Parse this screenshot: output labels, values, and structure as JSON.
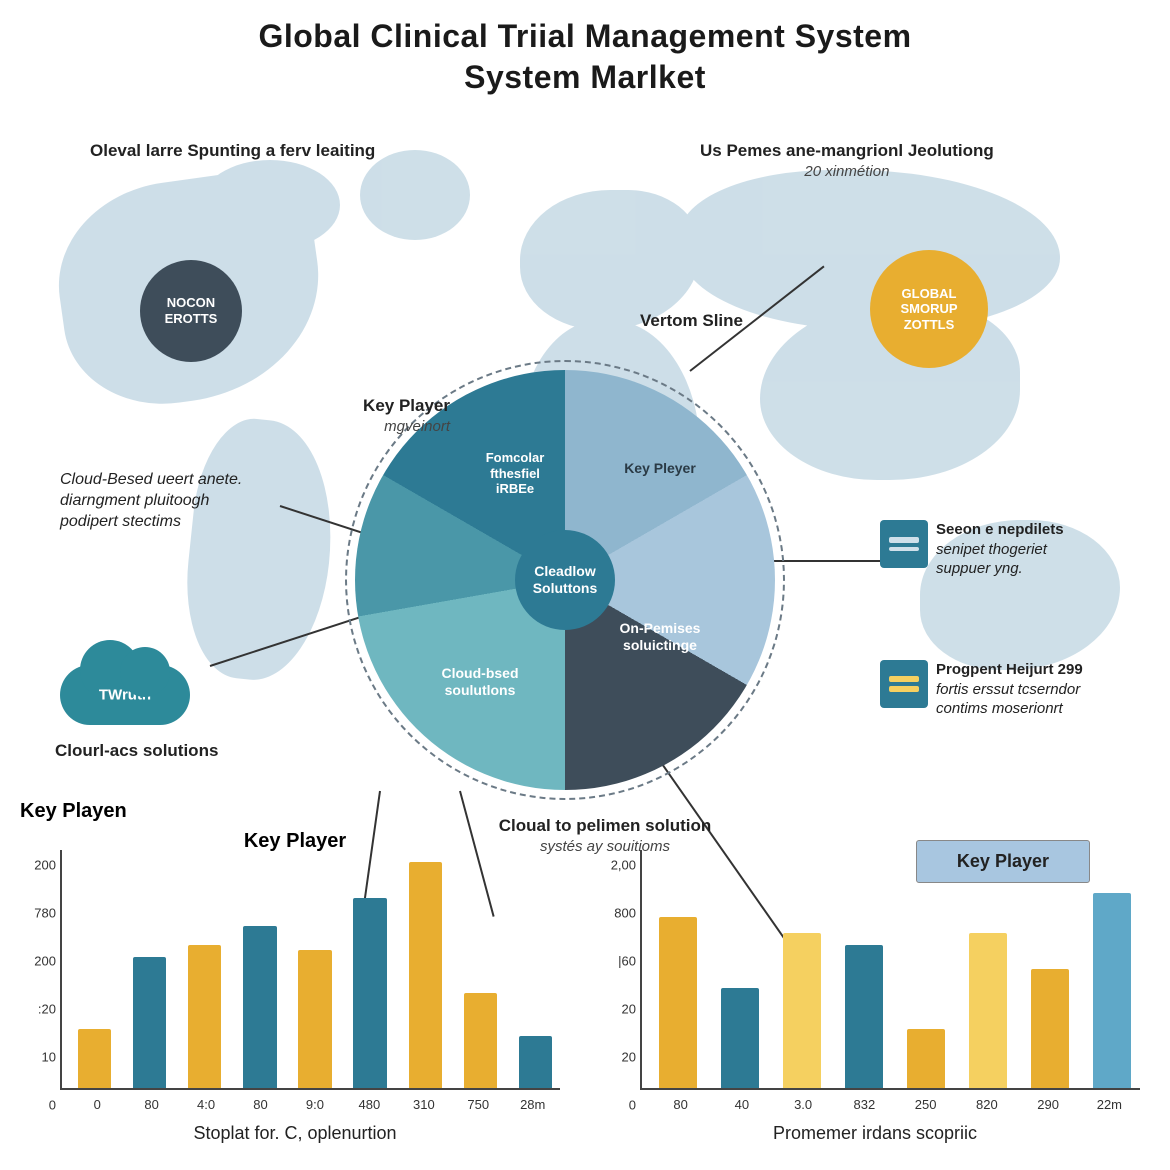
{
  "title": {
    "line1": "Global Clinical Triial Management System",
    "line2": "System Marlket",
    "fontsize": 32,
    "color": "#1a1a1a"
  },
  "map": {
    "fill": "#a6c4d6",
    "opacity": 0.55
  },
  "top_annotations": {
    "left": "Oleval larre Spunting a ferv leaiting",
    "right_line1": "Us Pemes ane-mangrionl Jeolutiong",
    "right_line2": "20 xinmétion"
  },
  "badges": {
    "dark": {
      "text_line1": "NOCON",
      "text_line2": "EROTTS",
      "bg": "#3e4d5a",
      "diameter": 102
    },
    "yellow": {
      "text_line1": "GLOBAL",
      "text_line2": "SMORUP",
      "text_line3": "ZOTTLS",
      "bg": "#e8ae30",
      "diameter": 118
    }
  },
  "pie": {
    "type": "pie",
    "diameter": 420,
    "center_label": "Cleadlow Soluttons",
    "center_bg": "#2d7a94",
    "ring_color": "#6b7a86",
    "slices": [
      {
        "label": "Key Pleyer",
        "angle": 60,
        "color": "#8fb6ce"
      },
      {
        "label": "",
        "angle": 60,
        "color": "#a8c6dc"
      },
      {
        "label": "On-Pemises\nsoluictinge",
        "angle": 60,
        "color": "#3e4d5a"
      },
      {
        "label": "Cloud-bsed\nsoulutlons",
        "angle": 80,
        "color": "#6fb7c0"
      },
      {
        "label": "",
        "angle": 40,
        "color": "#4a97a8"
      },
      {
        "label": "Fomcolar\nfthesfiel\niRBEe",
        "angle": 60,
        "color": "#2d7a94"
      }
    ]
  },
  "left_annotations": {
    "key_player": {
      "main": "Key Player",
      "sub": "mgveinort"
    },
    "cloud_based": {
      "line1": "Cloud-Besed ueert anete.",
      "line2": "diarngment pluitoogh",
      "line3": "podipert stectims"
    },
    "cloud_badge": "TWruth",
    "cloud_acs": "Clourl-acs solutions"
  },
  "center_annotations": {
    "vertom": "Vertom Sline",
    "bottom_main": "Cloual to pelimen solution",
    "bottom_sub": "systés ay souitioms"
  },
  "right_icons": {
    "monitor": {
      "line1": "Seeon e nepdilets",
      "line2": "senipet thogeriet",
      "line3": "suppuer yng."
    },
    "tablet": {
      "line1": "Progpent Heijurt 299",
      "line2": "fortis erssut tcserndor",
      "line3": "contims moserionrt"
    }
  },
  "chart_left": {
    "type": "bar",
    "heading": "Key Playen",
    "title": "Key Player",
    "caption": "Stoplat for. C, oplenurtion",
    "yticks": [
      "200",
      "780",
      "200",
      ":20",
      "10",
      "0"
    ],
    "xticks": [
      "0",
      "80",
      "4:0",
      "80",
      "9:0",
      "480",
      "310",
      "750",
      "28m"
    ],
    "values": [
      25,
      55,
      60,
      68,
      58,
      80,
      95,
      40,
      22
    ],
    "colors": [
      "#e8ae30",
      "#2d7a94",
      "#e8ae30",
      "#2d7a94",
      "#e8ae30",
      "#2d7a94",
      "#e8ae30",
      "#e8ae30",
      "#2d7a94"
    ],
    "ymax": 100
  },
  "chart_right": {
    "type": "bar",
    "legend": "Key Player",
    "caption": "Promemer irdans scopriic",
    "yticks": [
      "2,00",
      "800",
      "|60",
      "20",
      "20",
      "0"
    ],
    "xticks": [
      "80",
      "40",
      "3.0",
      "832",
      "250",
      "820",
      "290",
      "22m"
    ],
    "values": [
      72,
      42,
      65,
      60,
      25,
      65,
      50,
      82
    ],
    "colors": [
      "#e8ae30",
      "#2d7a94",
      "#f5d060",
      "#2d7a94",
      "#e8ae30",
      "#f5d060",
      "#e8ae30",
      "#5fa8c8"
    ],
    "ymax": 100
  },
  "palette": {
    "map": "#a6c4d6",
    "dark": "#3e4d5a",
    "teal": "#2d7a94",
    "teal_light": "#6fb7c0",
    "blue_light": "#a8c6dc",
    "blue_mid": "#8fb6ce",
    "yellow": "#e8ae30",
    "yellow_light": "#f5d060"
  }
}
